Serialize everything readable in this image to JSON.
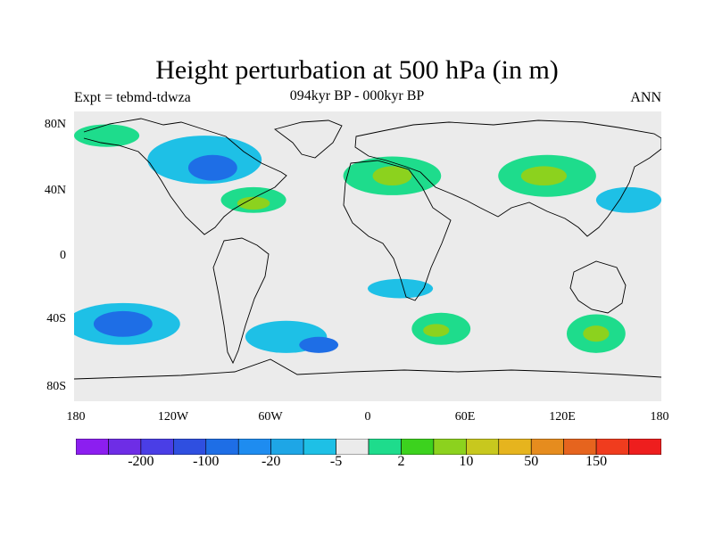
{
  "title": "Height perturbation at 500 hPa (in m)",
  "experiment_label": "Expt = tebmd-tdwza",
  "period_label": "094kyr BP - 000kyr BP",
  "season_label": "ANN",
  "lat_ticks": [
    "80N",
    "40N",
    "0",
    "40S",
    "80S"
  ],
  "lon_ticks": [
    "180",
    "120W",
    "60W",
    "0",
    "60E",
    "120E",
    "180"
  ],
  "colorbar": {
    "colors": [
      "#8c1ef0",
      "#6e2de6",
      "#4a3ee6",
      "#2f4fe0",
      "#1e6ee6",
      "#1e8cf0",
      "#1ea6e6",
      "#1ec0e6",
      "#ebebeb",
      "#1edc8c",
      "#3cd21e",
      "#8cd21e",
      "#c8c81e",
      "#e6b41e",
      "#e68c1e",
      "#e6641e",
      "#f03c1e",
      "#ee1e1e"
    ],
    "labels": [
      {
        "text": "-200",
        "boundary": 2
      },
      {
        "text": "-100",
        "boundary": 4
      },
      {
        "text": "-20",
        "boundary": 6
      },
      {
        "text": "-5",
        "boundary": 8
      },
      {
        "text": "2",
        "boundary": 10
      },
      {
        "text": "10",
        "boundary": 12
      },
      {
        "text": "50",
        "boundary": 14
      },
      {
        "text": "150",
        "boundary": 16
      }
    ]
  },
  "anomaly_blobs": [
    {
      "lon": -150,
      "lat": -42,
      "rx": 35,
      "ry": 13,
      "level": -5
    },
    {
      "lon": -150,
      "lat": -42,
      "rx": 18,
      "ry": 8,
      "level": -20
    },
    {
      "lon": -50,
      "lat": -50,
      "rx": 25,
      "ry": 10,
      "level": -5
    },
    {
      "lon": -30,
      "lat": -55,
      "rx": 12,
      "ry": 5,
      "level": -20
    },
    {
      "lon": 45,
      "lat": -45,
      "rx": 18,
      "ry": 10,
      "level": 2
    },
    {
      "lon": 42,
      "lat": -46,
      "rx": 8,
      "ry": 4,
      "level": 10
    },
    {
      "lon": 140,
      "lat": -48,
      "rx": 18,
      "ry": 12,
      "level": 2
    },
    {
      "lon": 140,
      "lat": -48,
      "rx": 8,
      "ry": 5,
      "level": 10
    },
    {
      "lon": -100,
      "lat": 60,
      "rx": 35,
      "ry": 15,
      "level": -5
    },
    {
      "lon": -95,
      "lat": 55,
      "rx": 15,
      "ry": 8,
      "level": -20
    },
    {
      "lon": -70,
      "lat": 35,
      "rx": 20,
      "ry": 8,
      "level": 2
    },
    {
      "lon": -70,
      "lat": 33,
      "rx": 10,
      "ry": 4,
      "level": 10
    },
    {
      "lon": 15,
      "lat": 50,
      "rx": 30,
      "ry": 12,
      "level": 2
    },
    {
      "lon": 15,
      "lat": 50,
      "rx": 12,
      "ry": 6,
      "level": 10
    },
    {
      "lon": 110,
      "lat": 50,
      "rx": 30,
      "ry": 13,
      "level": 2
    },
    {
      "lon": 108,
      "lat": 50,
      "rx": 14,
      "ry": 6,
      "level": 10
    },
    {
      "lon": 160,
      "lat": 35,
      "rx": 20,
      "ry": 8,
      "level": -5
    },
    {
      "lon": -160,
      "lat": 75,
      "rx": 20,
      "ry": 7,
      "level": 2
    },
    {
      "lon": 20,
      "lat": -20,
      "rx": 20,
      "ry": 6,
      "level": -5
    }
  ]
}
